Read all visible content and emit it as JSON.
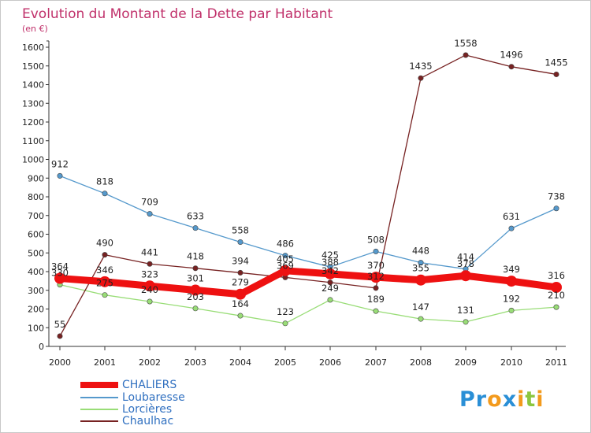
{
  "chart_data": {
    "type": "line",
    "title": "Evolution du Montant de la Dette par Habitant",
    "unit_label": "(en €)",
    "xlabel": "",
    "ylabel": "",
    "ylim": [
      0,
      1600
    ],
    "ytick_step": 100,
    "categories": [
      "2000",
      "2001",
      "2002",
      "2003",
      "2004",
      "2005",
      "2006",
      "2007",
      "2008",
      "2009",
      "2010",
      "2011"
    ],
    "series": [
      {
        "name": "CHALIERS",
        "color": "#ee1111",
        "values": [
          364,
          346,
          323,
          301,
          279,
          405,
          388,
          370,
          355,
          378,
          349,
          316
        ]
      },
      {
        "name": "Loubaresse",
        "color": "#5599cc",
        "values": [
          912,
          818,
          709,
          633,
          558,
          486,
          425,
          508,
          448,
          414,
          631,
          738
        ]
      },
      {
        "name": "Lorcières",
        "color": "#99dd77",
        "values": [
          330,
          275,
          240,
          203,
          164,
          123,
          249,
          189,
          147,
          131,
          192,
          210
        ]
      },
      {
        "name": "Chaulhac",
        "color": "#772222",
        "values": [
          55,
          490,
          441,
          418,
          394,
          369,
          342,
          312,
          1435,
          1558,
          1496,
          1455
        ]
      }
    ],
    "grid": false,
    "legend_position": "bottom-left",
    "logo_text": "Proxiti"
  }
}
